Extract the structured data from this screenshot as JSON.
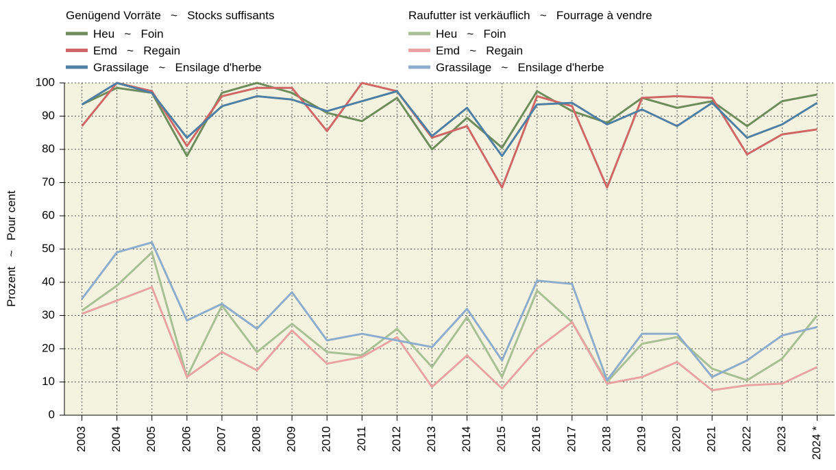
{
  "chart_data": {
    "type": "line",
    "ylabel": "Prozent   ~   Pour cent",
    "categories": [
      "2003",
      "2004",
      "2005",
      "2006",
      "2007",
      "2008",
      "2009",
      "2010",
      "2011",
      "2012",
      "2013",
      "2014",
      "2015",
      "2016",
      "2017",
      "2018",
      "2019",
      "2020",
      "2021",
      "2022",
      "2023",
      "2024 *"
    ],
    "ylim": [
      0,
      100
    ],
    "yticks": [
      0,
      10,
      20,
      30,
      40,
      50,
      60,
      70,
      80,
      90,
      100
    ],
    "grid": true,
    "series_groups": [
      {
        "title": "Genügend Vorräte   ~   Stocks suffisants",
        "series": [
          {
            "name": "Heu   ~   Foin",
            "color": "#6e8c5c",
            "values": [
              93.5,
              98.5,
              97,
              78,
              97,
              100,
              97,
              91,
              88.5,
              95.5,
              80,
              89.5,
              80.5,
              97.5,
              91.5,
              88,
              95.5,
              92.5,
              94.5,
              87,
              94.5,
              96.5
            ]
          },
          {
            "name": "Emd   ~   Regain",
            "color": "#d06767",
            "values": [
              87,
              100,
              97.5,
              81,
              96,
              98.5,
              98.5,
              85.5,
              100,
              97.5,
              83.5,
              87,
              68.5,
              96,
              93,
              68.5,
              95.5,
              96,
              95.5,
              78.5,
              84.5,
              86
            ]
          },
          {
            "name": "Grassilage   ~   Ensilage d'herbe",
            "color": "#4f7fa3",
            "values": [
              93.5,
              100,
              97,
              83.5,
              93,
              96,
              95,
              91.5,
              94.5,
              97.5,
              84,
              92.5,
              78,
              93.5,
              94,
              87.5,
              92,
              87,
              94,
              83.5,
              87.5,
              94
            ]
          }
        ]
      },
      {
        "title": "Raufutter ist verkäuflich   ~   Fourrage à vendre",
        "series": [
          {
            "name": "Heu   ~   Foin",
            "color": "#a9bf96",
            "values": [
              31.5,
              39,
              49,
              11.5,
              33,
              19,
              27.5,
              19,
              18,
              26,
              14.5,
              29.5,
              11.5,
              37.5,
              28,
              10,
              21.5,
              23.5,
              14,
              10.5,
              17,
              30
            ]
          },
          {
            "name": "Emd   ~   Regain",
            "color": "#eaa3a3",
            "values": [
              30.5,
              34.5,
              38.5,
              11.5,
              19,
              13.5,
              25.5,
              15.5,
              17.5,
              23.5,
              8.5,
              18,
              8,
              20,
              28,
              9.5,
              11.5,
              16,
              7.5,
              9,
              9.5,
              14.5
            ]
          },
          {
            "name": "Grassilage   ~   Ensilage d'herbe",
            "color": "#8eadcc",
            "values": [
              35,
              49,
              52,
              28.5,
              33.5,
              26,
              37,
              22.5,
              24.5,
              22.5,
              20.5,
              32,
              16.5,
              40.5,
              39.5,
              10.5,
              24.5,
              24.5,
              11.5,
              16.5,
              24,
              26.5
            ]
          }
        ]
      }
    ]
  }
}
